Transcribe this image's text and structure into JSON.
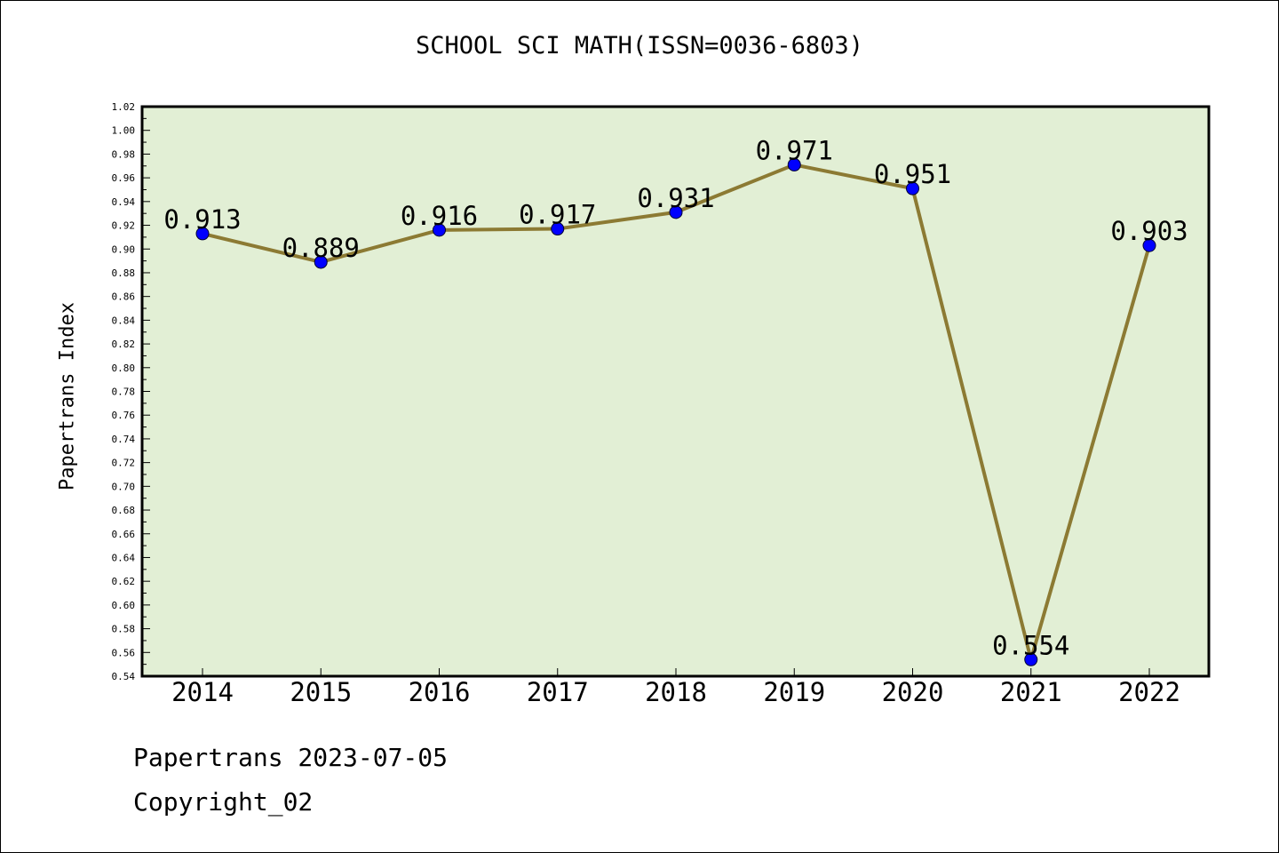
{
  "chart_data": {
    "type": "line",
    "title": "SCHOOL SCI MATH(ISSN=0036-6803)",
    "xlabel": "",
    "ylabel": "Papertrans Index",
    "categories": [
      "2014",
      "2015",
      "2016",
      "2017",
      "2018",
      "2019",
      "2020",
      "2021",
      "2022"
    ],
    "series": [
      {
        "values": [
          0.913,
          0.889,
          0.916,
          0.917,
          0.931,
          0.971,
          0.951,
          0.554,
          0.903
        ]
      }
    ],
    "data_labels": [
      "0.913",
      "0.889",
      "0.916",
      "0.917",
      "0.931",
      "0.971",
      "0.951",
      "0.554",
      "0.903"
    ],
    "ylim": [
      0.54,
      1.02
    ],
    "yticks": [
      "0.54",
      "0.56",
      "0.58",
      "0.60",
      "0.62",
      "0.64",
      "0.66",
      "0.68",
      "0.70",
      "0.72",
      "0.74",
      "0.76",
      "0.78",
      "0.80",
      "0.82",
      "0.84",
      "0.86",
      "0.88",
      "0.90",
      "0.92",
      "0.94",
      "0.96",
      "0.98",
      "1.00",
      "1.02"
    ],
    "grid": false,
    "colors": {
      "plot_background": "#e2efd5",
      "line": "#8c7a33",
      "marker": "#0000ff"
    }
  },
  "footer": {
    "line1": "Papertrans 2023-07-05",
    "line2": "Copyright_02"
  }
}
